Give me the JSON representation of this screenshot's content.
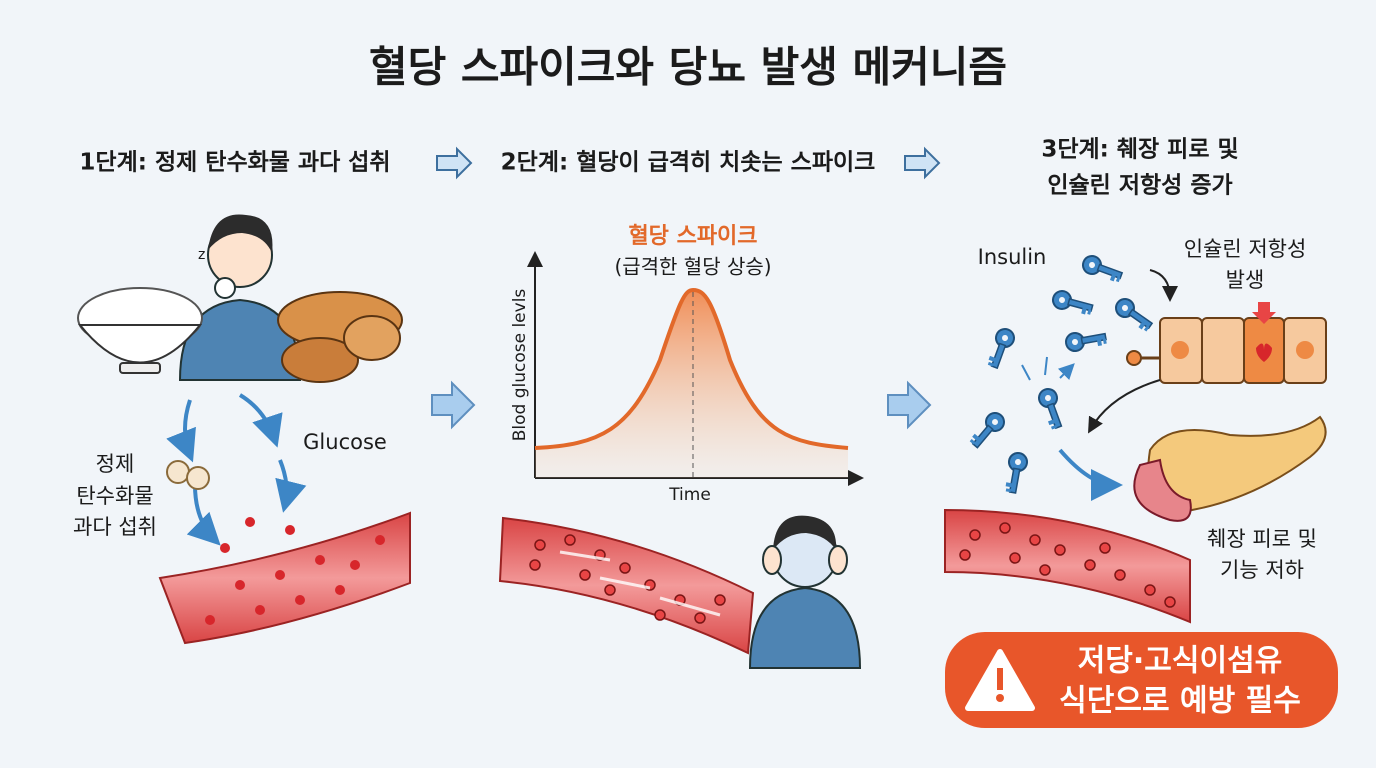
{
  "title": "혈당 스파이크와 당뇨 발생 메커니즘",
  "steps": [
    {
      "lines": [
        "1단계: 정제 탄수화물 과다 섭취"
      ]
    },
    {
      "lines": [
        "2단계: 혈당이 급격히 치솟는 스파이크"
      ]
    },
    {
      "lines": [
        "3단계: 췌장 피로 및",
        "인슐린 저항성 증가"
      ]
    }
  ],
  "panel1": {
    "label": [
      "정제",
      "탄수화물",
      "과다 섭취"
    ],
    "glucose": "Glucose"
  },
  "panel2": {
    "chart_title": "혈당 스파이크",
    "chart_subtitle": "(급격한 혈당 상승)",
    "y_label": "Blod glucose levls",
    "x_label": "Time"
  },
  "panel3": {
    "insulin": "Insulin",
    "resistance": [
      "인슐린 저항성",
      "발생"
    ],
    "pancreas": [
      "췌장 피로 및",
      "기능 저하"
    ]
  },
  "warning": [
    "저당·고식이섬유",
    "식단으로 예방 필수"
  ]
}
